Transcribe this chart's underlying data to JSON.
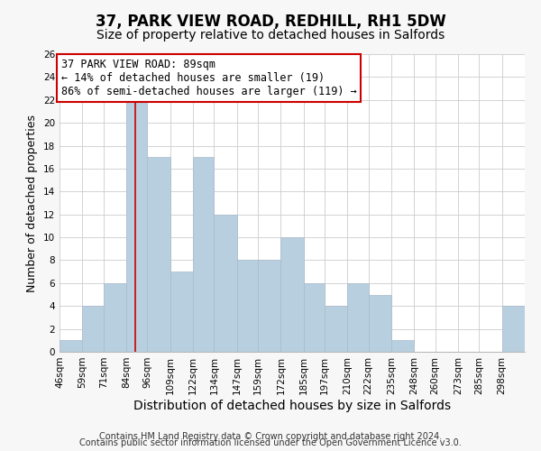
{
  "title": "37, PARK VIEW ROAD, REDHILL, RH1 5DW",
  "subtitle": "Size of property relative to detached houses in Salfords",
  "xlabel": "Distribution of detached houses by size in Salfords",
  "ylabel": "Number of detached properties",
  "bin_edges": [
    46,
    59,
    71,
    84,
    96,
    109,
    122,
    134,
    147,
    159,
    172,
    185,
    197,
    210,
    222,
    235,
    248,
    260,
    273,
    285,
    298,
    311
  ],
  "bar_heights": [
    1,
    4,
    6,
    22,
    17,
    7,
    17,
    12,
    8,
    8,
    10,
    6,
    4,
    6,
    5,
    1,
    0,
    0,
    0,
    0,
    4
  ],
  "bar_color": "#b8cfe0",
  "bar_edge_color": "#aabbcc",
  "bar_linewidth": 0.5,
  "property_size": 89,
  "red_line_color": "#cc0000",
  "annotation_title": "37 PARK VIEW ROAD: 89sqm",
  "annotation_line1": "← 14% of detached houses are smaller (19)",
  "annotation_line2": "86% of semi-detached houses are larger (119) →",
  "ylim": [
    0,
    26
  ],
  "yticks": [
    0,
    2,
    4,
    6,
    8,
    10,
    12,
    14,
    16,
    18,
    20,
    22,
    24,
    26
  ],
  "footnote1": "Contains HM Land Registry data © Crown copyright and database right 2024.",
  "footnote2": "Contains public sector information licensed under the Open Government Licence v3.0.",
  "bg_color": "#f7f7f7",
  "plot_bg_color": "#ffffff",
  "grid_color": "#cccccc",
  "title_fontsize": 12,
  "subtitle_fontsize": 10,
  "xlabel_fontsize": 10,
  "ylabel_fontsize": 9,
  "tick_fontsize": 7.5,
  "annotation_fontsize": 8.5,
  "footnote_fontsize": 7
}
